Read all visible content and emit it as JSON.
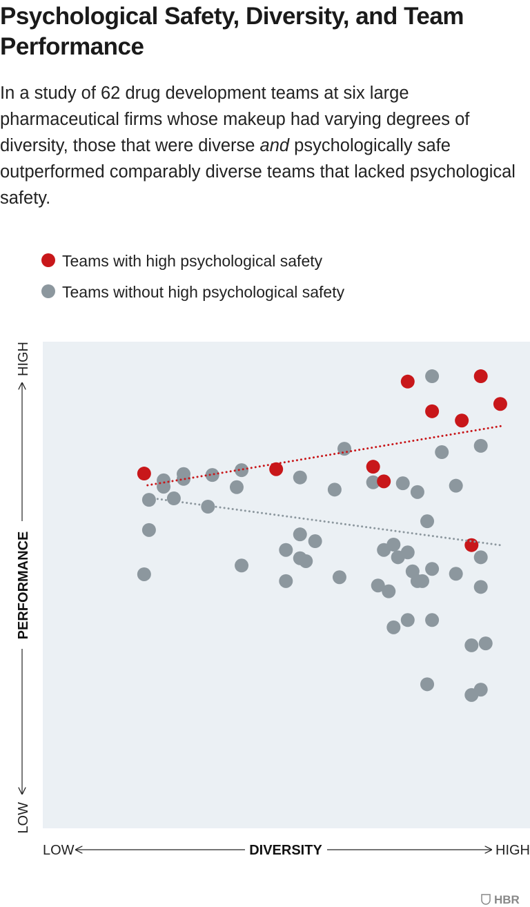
{
  "title": "Psychological Safety, Diversity, and Team Performance",
  "subtitle_parts": {
    "before": "In a study of 62 drug development teams at six large pharmaceutical firms whose makeup had varying degrees of diversity, those that were diverse ",
    "emphasis": "and",
    "after": " psychologically safe outperformed comparably diverse teams that lacked psychological safety."
  },
  "source_logo": "HBR",
  "chart_data": {
    "type": "scatter",
    "title": "Psychological Safety, Diversity, and Team Performance",
    "xlabel": "DIVERSITY",
    "ylabel": "PERFORMANCE",
    "x_tick_labels": {
      "low": "LOW",
      "high": "HIGH"
    },
    "y_tick_labels": {
      "low": "LOW",
      "high": "HIGH"
    },
    "xlim": [
      0,
      100
    ],
    "ylim": [
      0,
      100
    ],
    "grid": false,
    "legend_placement": "top-left",
    "series": [
      {
        "name": "Teams with high psychological safety",
        "color": "#c8171a",
        "points": [
          [
            20.8,
            72.9
          ],
          [
            47.9,
            73.8
          ],
          [
            74.9,
            91.8
          ],
          [
            89.9,
            92.9
          ],
          [
            79.9,
            85.7
          ],
          [
            86.0,
            83.8
          ],
          [
            93.9,
            87.2
          ],
          [
            67.8,
            74.3
          ],
          [
            70.0,
            71.3
          ],
          [
            88.0,
            58.2
          ]
        ],
        "trendline": [
          [
            21.5,
            70.5
          ],
          [
            94.3,
            82.7
          ]
        ]
      },
      {
        "name": "Teams without high psychological safety",
        "color": "#8c979e",
        "points": [
          [
            24.8,
            71.5
          ],
          [
            24.8,
            70.2
          ],
          [
            28.9,
            72.8
          ],
          [
            28.9,
            71.8
          ],
          [
            34.8,
            72.6
          ],
          [
            40.8,
            73.6
          ],
          [
            39.8,
            70.1
          ],
          [
            52.8,
            72.1
          ],
          [
            21.8,
            67.5
          ],
          [
            26.9,
            67.8
          ],
          [
            33.9,
            66.1
          ],
          [
            21.8,
            61.3
          ],
          [
            20.8,
            52.2
          ],
          [
            40.8,
            54.0
          ],
          [
            52.8,
            60.4
          ],
          [
            55.9,
            59.0
          ],
          [
            49.9,
            57.2
          ],
          [
            52.8,
            55.5
          ],
          [
            54.0,
            54.9
          ],
          [
            49.9,
            50.8
          ],
          [
            79.9,
            92.9
          ],
          [
            61.9,
            78.0
          ],
          [
            81.9,
            77.3
          ],
          [
            89.9,
            78.6
          ],
          [
            59.9,
            69.6
          ],
          [
            67.8,
            71.1
          ],
          [
            73.9,
            70.9
          ],
          [
            76.9,
            69.1
          ],
          [
            84.8,
            70.4
          ],
          [
            78.9,
            63.1
          ],
          [
            70.0,
            57.2
          ],
          [
            72.0,
            58.3
          ],
          [
            72.9,
            55.7
          ],
          [
            74.9,
            56.7
          ],
          [
            89.9,
            55.7
          ],
          [
            60.9,
            51.6
          ],
          [
            75.9,
            52.8
          ],
          [
            76.9,
            50.8
          ],
          [
            77.9,
            50.8
          ],
          [
            79.9,
            53.3
          ],
          [
            84.8,
            52.3
          ],
          [
            89.9,
            49.6
          ],
          [
            68.8,
            49.9
          ],
          [
            71.0,
            48.7
          ],
          [
            72.0,
            41.3
          ],
          [
            74.9,
            42.8
          ],
          [
            79.9,
            42.8
          ],
          [
            88.0,
            37.6
          ],
          [
            90.9,
            38.0
          ],
          [
            78.9,
            29.6
          ],
          [
            88.0,
            27.4
          ],
          [
            89.9,
            28.5
          ]
        ],
        "trendline": [
          [
            22.7,
            67.8
          ],
          [
            93.8,
            58.2
          ]
        ]
      }
    ],
    "plot_background": "#ebf0f4"
  }
}
